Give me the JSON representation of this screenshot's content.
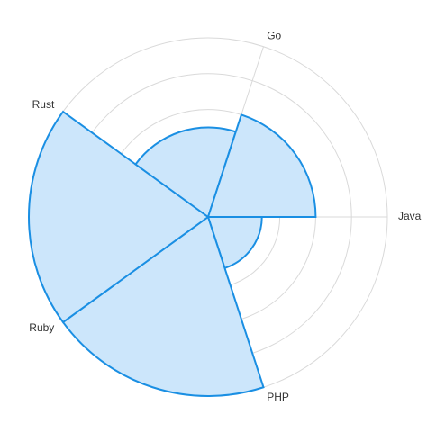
{
  "chart_data": {
    "type": "polar-area",
    "categories": [
      "Java",
      "PHP",
      "Ruby",
      "Rust",
      "Go"
    ],
    "values": [
      60,
      200,
      200,
      100,
      120
    ],
    "r_max": 200,
    "ring_values": [
      40,
      80,
      120,
      160,
      200
    ],
    "grid": true,
    "legend": "none",
    "title": "",
    "colors": {
      "fill": "#cce6fb",
      "stroke": "#1a8fe3",
      "grid": "#d9d9d9",
      "label": "#333333"
    }
  }
}
